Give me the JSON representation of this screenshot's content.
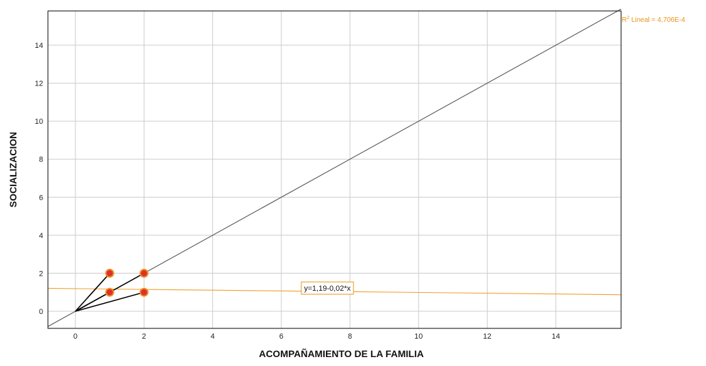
{
  "chart_data": {
    "type": "scatter",
    "xlabel": "ACOMPAÑAMIENTO DE LA FAMILIA",
    "ylabel": "SOCIALIZACION",
    "xlim": [
      -0.8,
      15.9
    ],
    "ylim": [
      -0.9,
      15.8
    ],
    "x_ticks": [
      0,
      2,
      4,
      6,
      8,
      10,
      12,
      14
    ],
    "y_ticks": [
      0,
      2,
      4,
      6,
      8,
      10,
      12,
      14
    ],
    "grid": true,
    "points": [
      {
        "x": 1,
        "y": 2
      },
      {
        "x": 1,
        "y": 1
      },
      {
        "x": 2,
        "y": 2
      },
      {
        "x": 2,
        "y": 1
      }
    ],
    "reference_line": {
      "type": "identity",
      "x": [
        -0.8,
        15.9
      ],
      "y": [
        -0.8,
        15.9
      ]
    },
    "fit_line": {
      "intercept": 1.19,
      "slope": -0.02,
      "x": [
        -0.8,
        15.9
      ]
    },
    "fit_equation": "y=1,19-0,02*x",
    "r2_prefix": "R",
    "r2_sup": "2",
    "r2_text": " Lineal = 4,706E-4",
    "colors": {
      "fit": "#f0a030",
      "point_fill": "#dd3030",
      "point_stroke": "#f08c1e",
      "identity": "#555555",
      "spikes": "#000000",
      "grid": "#cccccc"
    }
  }
}
